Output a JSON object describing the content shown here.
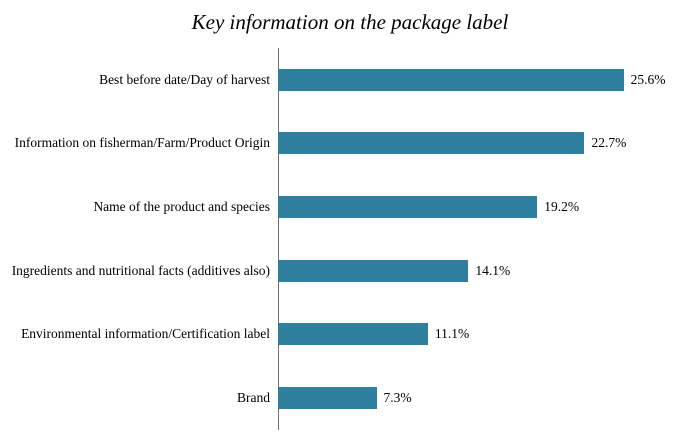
{
  "chart_data": {
    "type": "bar",
    "orientation": "horizontal",
    "title": "Key information on the package label",
    "categories": [
      "Best before date/Day of harvest",
      "Information on fisherman/Farm/Product Origin",
      "Name of the product and species",
      "Ingredients and nutritional facts (additives also)",
      "Environmental information/Certification label",
      "Brand"
    ],
    "values": [
      25.6,
      22.7,
      19.2,
      14.1,
      11.1,
      7.3
    ],
    "value_labels": [
      "25.6%",
      "22.7%",
      "19.2%",
      "14.1%",
      "11.1%",
      "7.3%"
    ],
    "xlabel": "",
    "ylabel": "",
    "xlim": [
      0,
      28
    ],
    "grid": false,
    "legend": "none",
    "bar_color": "#2E7F9E",
    "axis_color": "#6E6E6E",
    "background_color": "#FFFFFF",
    "text_color": "#000000"
  }
}
